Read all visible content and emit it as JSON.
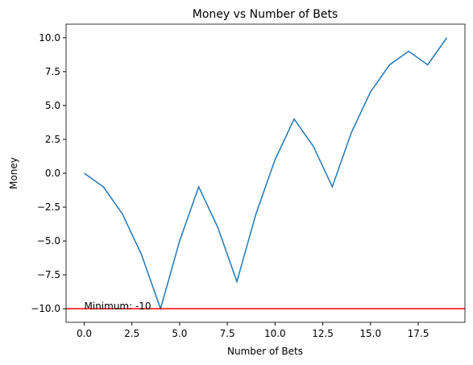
{
  "chart_data": {
    "type": "line",
    "title": "Money vs Number of Bets",
    "x_label": "Number of Bets",
    "y_label": "Money",
    "x": [
      0,
      1,
      2,
      3,
      4,
      5,
      6,
      7,
      8,
      9,
      10,
      11,
      12,
      13,
      14,
      15,
      16,
      17,
      18,
      19
    ],
    "values": [
      0,
      -1,
      -3,
      -6,
      -10,
      -5,
      -1,
      -4,
      -8,
      -3,
      1,
      4,
      2,
      -1,
      3,
      6,
      8,
      9,
      8,
      10
    ],
    "color": "#1f77b4",
    "xlim": [
      -0.95,
      19.95
    ],
    "xticks": [
      {
        "value": 0,
        "label": "0.0"
      },
      {
        "value": 2.5,
        "label": "2.5"
      },
      {
        "value": 5,
        "label": "5.0"
      },
      {
        "value": 7.5,
        "label": "7.5"
      },
      {
        "value": 10,
        "label": "10.0"
      },
      {
        "value": 12.5,
        "label": "12.5"
      },
      {
        "value": 15,
        "label": "15.0"
      },
      {
        "value": 17.5,
        "label": "17.5"
      }
    ],
    "ylim": [
      -11,
      11
    ],
    "yticks": [
      {
        "value": -10,
        "label": "−10.0"
      },
      {
        "value": -7.5,
        "label": "−7.5"
      },
      {
        "value": -5,
        "label": "−5.0"
      },
      {
        "value": -2.5,
        "label": "−2.5"
      },
      {
        "value": 0,
        "label": "0.0"
      },
      {
        "value": 2.5,
        "label": "2.5"
      },
      {
        "value": 5,
        "label": "5.0"
      },
      {
        "value": 7.5,
        "label": "7.5"
      },
      {
        "value": 10,
        "label": "10.0"
      }
    ],
    "hline": {
      "y": -10,
      "color": "red"
    },
    "annotation": {
      "text": "Minimum: -10",
      "x": 0,
      "y": -10
    }
  }
}
